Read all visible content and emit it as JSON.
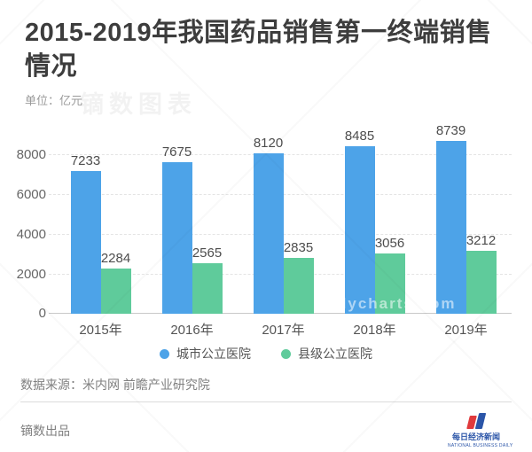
{
  "header": {
    "title": "2015-2019年我国药品销售第一终端销售情况",
    "unit_label": "单位：亿元"
  },
  "watermarks": {
    "header": "镝数图表",
    "chart": "dycharts.com"
  },
  "chart_data": {
    "type": "bar",
    "title": "2015-2019年我国药品销售第一终端销售情况",
    "unit": "亿元",
    "categories": [
      "2015年",
      "2016年",
      "2017年",
      "2018年",
      "2019年"
    ],
    "series": [
      {
        "name": "城市公立医院",
        "color": "#4da3e8",
        "values": [
          7233,
          7675,
          8120,
          8485,
          8739
        ]
      },
      {
        "name": "县级公立医院",
        "color": "#5fcb9b",
        "values": [
          2284,
          2565,
          2835,
          3056,
          3212
        ]
      }
    ],
    "yticks": [
      0,
      2000,
      4000,
      6000,
      8000
    ],
    "ylim": [
      0,
      9430
    ],
    "xlabel": "",
    "ylabel": "",
    "grid": "dashed-horizontal",
    "legend_position": "bottom-center",
    "value_labels": true
  },
  "footer": {
    "source": "数据来源：米内网 前瞻产业研究院",
    "produced_by": "镝数出品",
    "logo": {
      "cn": "每日经济新闻",
      "en": "NATIONAL BUSINESS DAILY"
    }
  }
}
